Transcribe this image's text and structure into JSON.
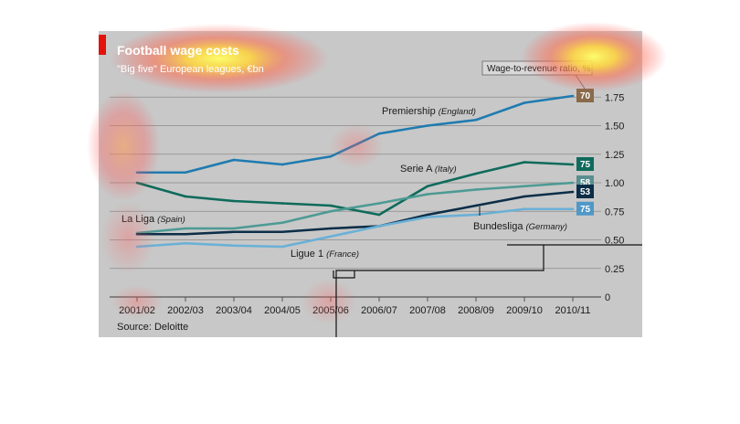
{
  "chart_data": {
    "type": "line",
    "title": "Football wage costs",
    "subtitle": "\"Big five\" European leagues, €bn",
    "source": "Source: Deloitte",
    "x": [
      "2001/02",
      "2002/03",
      "2003/04",
      "2004/05",
      "2005/06",
      "2006/07",
      "2007/08",
      "2008/09",
      "2009/10",
      "2010/11"
    ],
    "ylim": [
      0,
      1.75
    ],
    "yticks": [
      "0",
      "0.25",
      "0.50",
      "0.75",
      "1.00",
      "1.25",
      "1.50",
      "1.75"
    ],
    "ratio_label": "Wage-to-revenue ratio, %",
    "grid": true,
    "series": [
      {
        "name": "Premiership",
        "country": "(England)",
        "color": "#1f7bb0",
        "badge": "70",
        "badge_color": "#8a6a4a",
        "values": [
          1.09,
          1.09,
          1.2,
          1.16,
          1.23,
          1.43,
          1.5,
          1.55,
          1.7,
          1.76
        ]
      },
      {
        "name": "Serie A",
        "country": "(Italy)",
        "color": "#0f6b5c",
        "badge": "75",
        "badge_color": "#0f6b5c",
        "values": [
          1.0,
          0.88,
          0.84,
          0.82,
          0.8,
          0.72,
          0.97,
          1.08,
          1.18,
          1.16
        ]
      },
      {
        "name": "La Liga",
        "country": "(Spain)",
        "color": "#4d9a94",
        "badge": "58",
        "badge_color": "#5a8f8f",
        "values": [
          0.56,
          0.6,
          0.6,
          0.65,
          0.75,
          0.82,
          0.9,
          0.94,
          0.97,
          1.0
        ]
      },
      {
        "name": "Bundesliga",
        "country": "(Germany)",
        "color": "#0c2e48",
        "badge": "53",
        "badge_color": "#0c2e48",
        "values": [
          0.55,
          0.55,
          0.57,
          0.57,
          0.6,
          0.62,
          0.72,
          0.8,
          0.88,
          0.92
        ]
      },
      {
        "name": "Ligue 1",
        "country": "(France)",
        "color": "#6ab0d6",
        "badge": "75",
        "badge_color": "#4f98c7",
        "values": [
          0.44,
          0.47,
          0.45,
          0.44,
          0.53,
          0.62,
          0.7,
          0.72,
          0.77,
          0.77
        ]
      }
    ]
  }
}
